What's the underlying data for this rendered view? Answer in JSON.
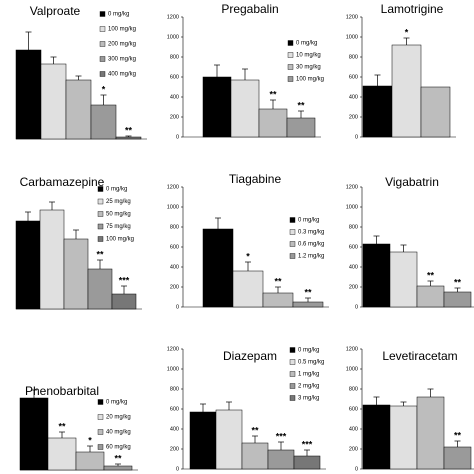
{
  "chart_data": [
    {
      "type": "bar",
      "title": "Valproate",
      "categories": [
        "0 mg/kg",
        "100 mg/kg",
        "200 mg/kg",
        "300 mg/kg",
        "400 mg/kg"
      ],
      "values": [
        890,
        750,
        590,
        340,
        20
      ],
      "errors": [
        180,
        70,
        40,
        100,
        10
      ],
      "annotations": [
        null,
        null,
        null,
        "*",
        "**"
      ],
      "colors": [
        "#000000",
        "#e0e0e0",
        "#bdbdbd",
        "#9a9a9a",
        "#777777"
      ],
      "ylim": [
        0,
        1200
      ]
    },
    {
      "type": "bar",
      "title": "Pregabalin",
      "categories": [
        "0 mg/kg",
        "10 mg/kg",
        "30 mg/kg",
        "100 mg/kg"
      ],
      "values": [
        600,
        570,
        280,
        190
      ],
      "errors": [
        120,
        110,
        90,
        70
      ],
      "annotations": [
        null,
        null,
        "**",
        "**"
      ],
      "colors": [
        "#000000",
        "#e0e0e0",
        "#bdbdbd",
        "#9a9a9a"
      ],
      "ylim": [
        0,
        1200
      ],
      "yticks": [
        0,
        200,
        400,
        600,
        800,
        1000,
        1200
      ]
    },
    {
      "type": "bar",
      "title": "Lamotrigine",
      "categories": [
        null,
        null,
        null
      ],
      "values": [
        510,
        920,
        500
      ],
      "errors": [
        110,
        70,
        null
      ],
      "annotations": [
        null,
        "*",
        null
      ],
      "colors": [
        "#000000",
        "#e0e0e0",
        "#bdbdbd"
      ],
      "ylim": [
        0,
        1200
      ],
      "yticks": [
        0,
        200,
        400,
        600,
        800,
        1000,
        1200
      ]
    },
    {
      "type": "bar",
      "title": "Carbamazepine",
      "categories": [
        "0 mg/kg",
        "25 mg/kg",
        "50 mg/kg",
        "75 mg/kg",
        "100 mg/kg"
      ],
      "values": [
        880,
        990,
        700,
        400,
        150
      ],
      "errors": [
        90,
        80,
        90,
        90,
        80
      ],
      "annotations": [
        null,
        null,
        null,
        "**",
        "***"
      ],
      "colors": [
        "#000000",
        "#e0e0e0",
        "#bdbdbd",
        "#9a9a9a",
        "#777777"
      ],
      "ylim": [
        0,
        1200
      ]
    },
    {
      "type": "bar",
      "title": "Tiagabine",
      "categories": [
        "0 mg/kg",
        "0.3 mg/kg",
        "0.6 mg/kg",
        "1.2 mg/kg"
      ],
      "values": [
        780,
        360,
        140,
        50
      ],
      "errors": [
        110,
        90,
        60,
        40
      ],
      "annotations": [
        null,
        "*",
        "**",
        "**"
      ],
      "colors": [
        "#000000",
        "#e0e0e0",
        "#bdbdbd",
        "#9a9a9a"
      ],
      "ylim": [
        0,
        1200
      ],
      "yticks": [
        0,
        200,
        400,
        600,
        800,
        1000,
        1200
      ]
    },
    {
      "type": "bar",
      "title": "Vigabatrin",
      "categories": [
        null,
        null,
        null,
        null
      ],
      "values": [
        630,
        550,
        210,
        150
      ],
      "errors": [
        80,
        70,
        50,
        40
      ],
      "annotations": [
        null,
        null,
        "**",
        "**"
      ],
      "colors": [
        "#000000",
        "#e0e0e0",
        "#bdbdbd",
        "#9a9a9a"
      ],
      "ylim": [
        0,
        1200
      ],
      "yticks": [
        0,
        200,
        400,
        600,
        800,
        1000,
        1200
      ]
    },
    {
      "type": "bar",
      "title": "Phenobarbital",
      "categories": [
        "0 mg/kg",
        "20 mg/kg",
        "40 mg/kg",
        "60 mg/kg"
      ],
      "values": [
        720,
        320,
        180,
        40
      ],
      "errors": [
        80,
        60,
        60,
        20
      ],
      "annotations": [
        null,
        "**",
        "*",
        "**"
      ],
      "colors": [
        "#000000",
        "#e0e0e0",
        "#bdbdbd",
        "#9a9a9a"
      ],
      "ylim": [
        0,
        1200
      ]
    },
    {
      "type": "bar",
      "title": "Diazepam",
      "categories": [
        "0 mg/kg",
        "0.5 mg/kg",
        "1 mg/kg",
        "2 mg/kg",
        "3 mg/kg"
      ],
      "values": [
        570,
        590,
        260,
        190,
        130
      ],
      "errors": [
        80,
        80,
        70,
        80,
        60
      ],
      "annotations": [
        null,
        null,
        "**",
        "***",
        "***"
      ],
      "colors": [
        "#000000",
        "#e0e0e0",
        "#bdbdbd",
        "#9a9a9a",
        "#777777"
      ],
      "ylim": [
        0,
        1200
      ],
      "yticks": [
        0,
        200,
        400,
        600,
        800,
        1000,
        1200
      ]
    },
    {
      "type": "bar",
      "title": "Levetiracetam",
      "categories": [
        null,
        null,
        null,
        null
      ],
      "values": [
        640,
        630,
        720,
        220
      ],
      "errors": [
        80,
        40,
        80,
        60
      ],
      "annotations": [
        null,
        null,
        null,
        "**"
      ],
      "colors": [
        "#000000",
        "#e0e0e0",
        "#bdbdbd",
        "#9a9a9a"
      ],
      "ylim": [
        0,
        1200
      ],
      "yticks": [
        0,
        200,
        400,
        600,
        800,
        1000,
        1200
      ]
    }
  ]
}
